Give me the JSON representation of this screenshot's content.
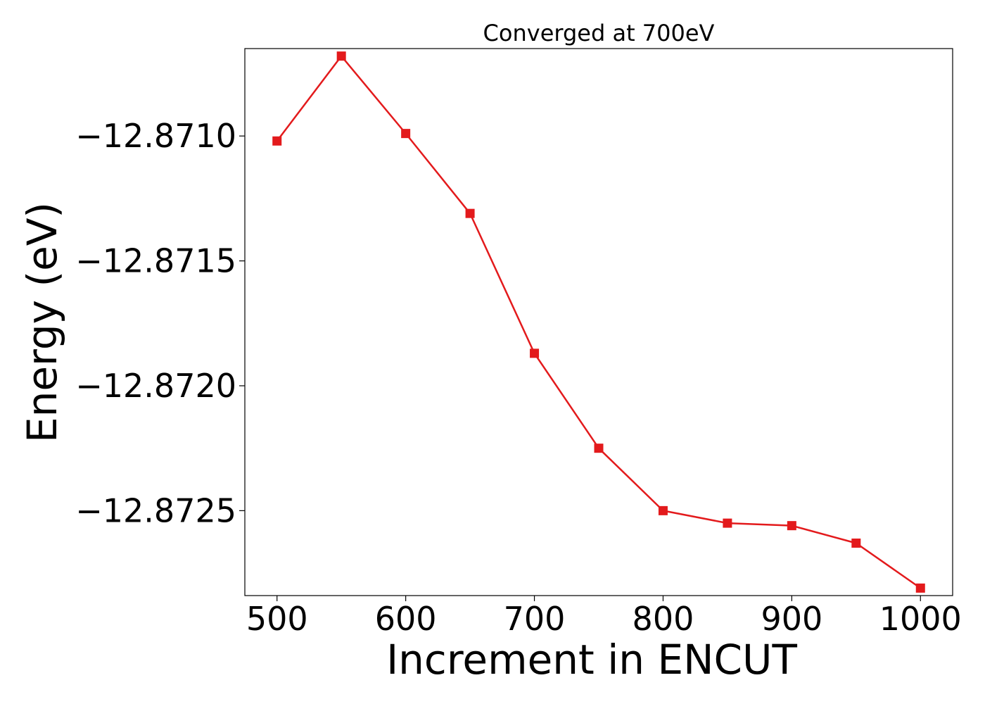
{
  "chart_data": {
    "type": "line",
    "title": "Converged at 700eV",
    "xlabel": "Increment in ENCUT",
    "ylabel": "Energy (eV)",
    "x": [
      500,
      550,
      600,
      650,
      700,
      750,
      800,
      850,
      900,
      950,
      1000
    ],
    "series": [
      {
        "name": "",
        "values": [
          -12.87102,
          -12.87068,
          -12.87099,
          -12.87131,
          -12.87187,
          -12.87225,
          -12.8725,
          -12.87255,
          -12.87256,
          -12.87263,
          -12.87281
        ],
        "color": "#e31a1c",
        "marker": "square"
      }
    ],
    "xticks": [
      500,
      600,
      700,
      800,
      900,
      1000
    ],
    "xtick_labels": [
      "500",
      "600",
      "700",
      "800",
      "900",
      "1000"
    ],
    "yticks": [
      -12.871,
      -12.8715,
      -12.872,
      -12.8725
    ],
    "ytick_labels": [
      "−12.8710",
      "−12.8715",
      "−12.8720",
      "−12.8725"
    ],
    "xlim": [
      475,
      1025
    ],
    "ylim": [
      -12.87284,
      -12.87065
    ],
    "grid": false,
    "legend": "none"
  }
}
